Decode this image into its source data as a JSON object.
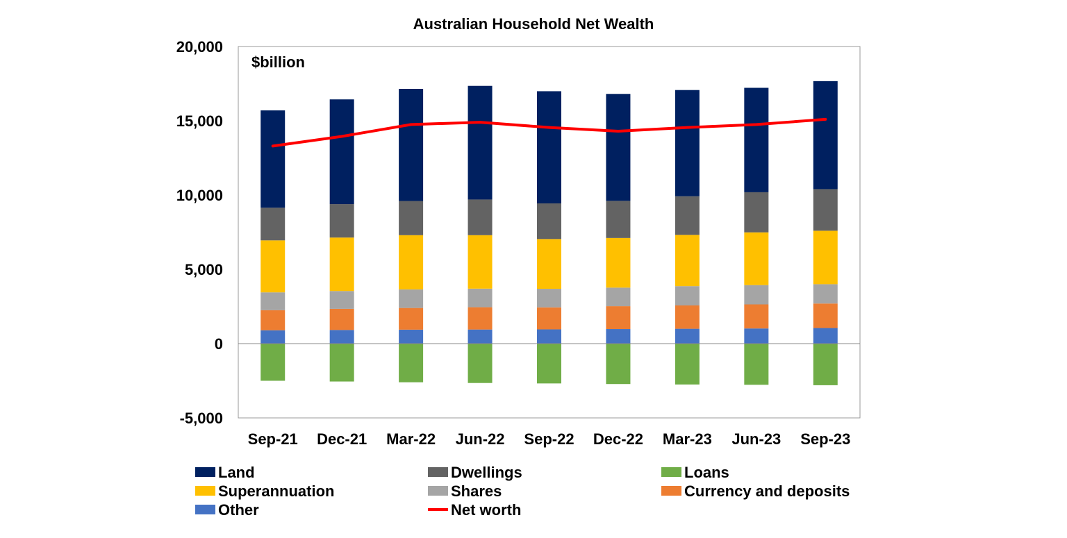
{
  "chart_data": {
    "type": "bar",
    "stacked": true,
    "title": "Australian Household Net Wealth",
    "unit_label": "$billion",
    "xlabel": "",
    "ylabel": "",
    "ylim": [
      -5000,
      20000
    ],
    "yticks": [
      -5000,
      0,
      5000,
      10000,
      15000,
      20000
    ],
    "ytick_labels": [
      "-5,000",
      "0",
      "5,000",
      "10,000",
      "15,000",
      "20,000"
    ],
    "categories": [
      "Sep-21",
      "Dec-21",
      "Mar-22",
      "Jun-22",
      "Sep-22",
      "Dec-22",
      "Mar-23",
      "Jun-23",
      "Sep-23"
    ],
    "series": [
      {
        "key": "other",
        "name": "Other",
        "color": "#4472C4",
        "values": [
          900,
          920,
          940,
          950,
          960,
          980,
          1000,
          1020,
          1050
        ]
      },
      {
        "key": "currency",
        "name": "Currency and deposits",
        "color": "#ED7D31",
        "values": [
          1350,
          1420,
          1460,
          1500,
          1480,
          1540,
          1570,
          1620,
          1650
        ]
      },
      {
        "key": "shares",
        "name": "Shares",
        "color": "#A5A5A5",
        "values": [
          1200,
          1200,
          1250,
          1250,
          1250,
          1250,
          1300,
          1300,
          1300
        ]
      },
      {
        "key": "super",
        "name": "Superannuation",
        "color": "#FFC000",
        "values": [
          3500,
          3600,
          3650,
          3600,
          3350,
          3340,
          3450,
          3550,
          3600
        ]
      },
      {
        "key": "dwellings",
        "name": "Dwellings",
        "color": "#636363",
        "values": [
          2200,
          2250,
          2300,
          2400,
          2400,
          2500,
          2600,
          2700,
          2800
        ]
      },
      {
        "key": "land",
        "name": "Land",
        "color": "#002060",
        "values": [
          6550,
          7050,
          7550,
          7650,
          7550,
          7200,
          7150,
          7030,
          7270
        ]
      },
      {
        "key": "loans",
        "name": "Loans",
        "color": "#70AD47",
        "values": [
          -2500,
          -2550,
          -2600,
          -2650,
          -2680,
          -2720,
          -2750,
          -2770,
          -2800
        ]
      }
    ],
    "net_worth": {
      "name": "Net worth",
      "color": "#FF0000",
      "values": [
        13300,
        13950,
        14750,
        14900,
        14550,
        14300,
        14550,
        14750,
        15100
      ]
    },
    "legend": [
      {
        "key": "land",
        "label": "Land",
        "kind": "box",
        "color": "#002060"
      },
      {
        "key": "dwellings",
        "label": "Dwellings",
        "kind": "box",
        "color": "#636363"
      },
      {
        "key": "loans",
        "label": "Loans",
        "kind": "box",
        "color": "#70AD47"
      },
      {
        "key": "super",
        "label": "Superannuation",
        "kind": "box",
        "color": "#FFC000"
      },
      {
        "key": "shares",
        "label": "Shares",
        "kind": "box",
        "color": "#A5A5A5"
      },
      {
        "key": "currency",
        "label": "Currency and deposits",
        "kind": "box",
        "color": "#ED7D31"
      },
      {
        "key": "other",
        "label": "Other",
        "kind": "box",
        "color": "#4472C4"
      },
      {
        "key": "net_worth",
        "label": "Net worth",
        "kind": "line",
        "color": "#FF0000"
      }
    ],
    "legend_position": "bottom",
    "grid": false
  }
}
